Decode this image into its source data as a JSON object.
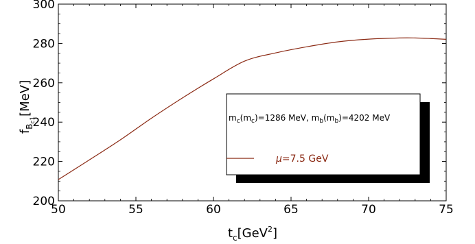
{
  "chart_data": {
    "type": "line",
    "x": [
      50,
      52,
      54,
      56,
      58,
      60,
      62,
      64,
      66,
      68,
      70,
      72,
      73,
      74,
      75
    ],
    "series": [
      {
        "name_prefix": "μ",
        "name_suffix": "=7.5 GeV",
        "color": "#8b2a14",
        "values": [
          210.8,
          220.8,
          231.0,
          242.0,
          252.3,
          262.0,
          271.0,
          275.2,
          278.3,
          280.8,
          282.2,
          282.8,
          282.8,
          282.5,
          282.1
        ]
      }
    ],
    "xlim": [
      50,
      75
    ],
    "ylim": [
      200,
      300
    ],
    "xticks": [
      50,
      55,
      60,
      65,
      70,
      75
    ],
    "yticks": [
      200,
      220,
      240,
      260,
      280,
      300
    ],
    "xlabel": {
      "base": "t",
      "sub": "c",
      "bracket_open": "[GeV",
      "sup": "2",
      "bracket_close": "]"
    },
    "ylabel": {
      "base": "f",
      "sub": "B",
      "subsub": "c1",
      "rest": "[MeV]"
    },
    "legend": {
      "placement": "right-lower",
      "note": {
        "p1": "m",
        "s1": "c",
        "p2": "(m",
        "s2": "c",
        "p3": ")=1286 MeV, m",
        "s3": "b",
        "p4": "(m",
        "s4": "b",
        "p5": ")=4202 MeV"
      }
    },
    "grid": false
  }
}
